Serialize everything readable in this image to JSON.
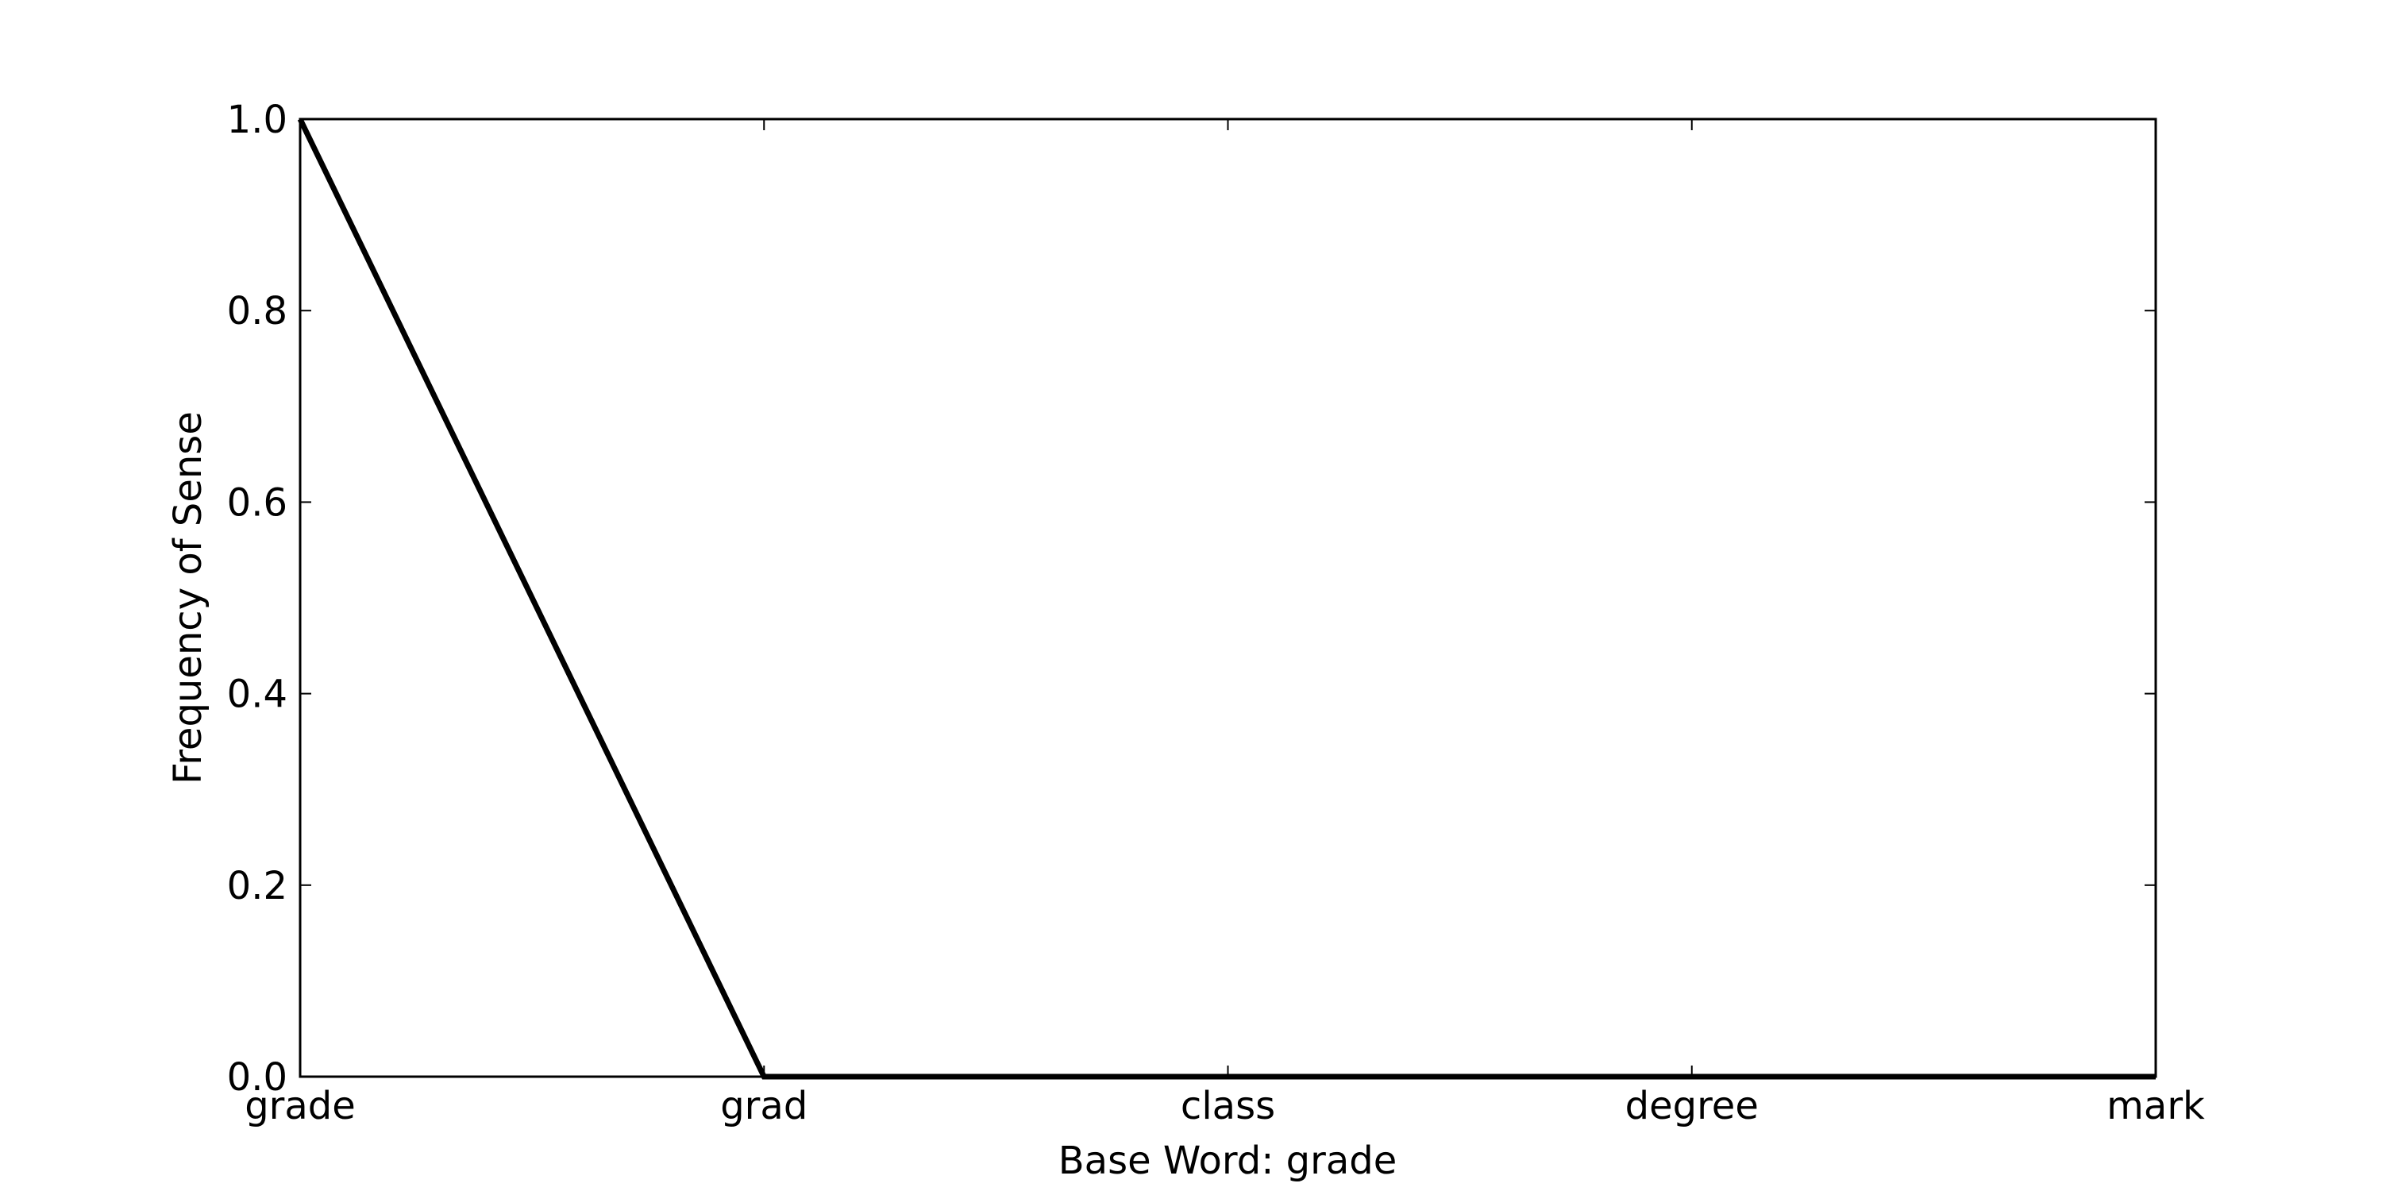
{
  "chart_data": {
    "type": "line",
    "categories": [
      "grade",
      "grad",
      "class",
      "degree",
      "mark"
    ],
    "series": [
      {
        "values": [
          1.0,
          0.0,
          0.0,
          0.0,
          0.0
        ]
      }
    ],
    "xlabel": "Base Word: grade",
    "ylabel": "Frequency of Sense",
    "ylim": [
      0.0,
      1.0
    ],
    "yticks": [
      "0.0",
      "0.2",
      "0.4",
      "0.6",
      "0.8",
      "1.0"
    ],
    "grid": false,
    "line_color": "#000000"
  }
}
